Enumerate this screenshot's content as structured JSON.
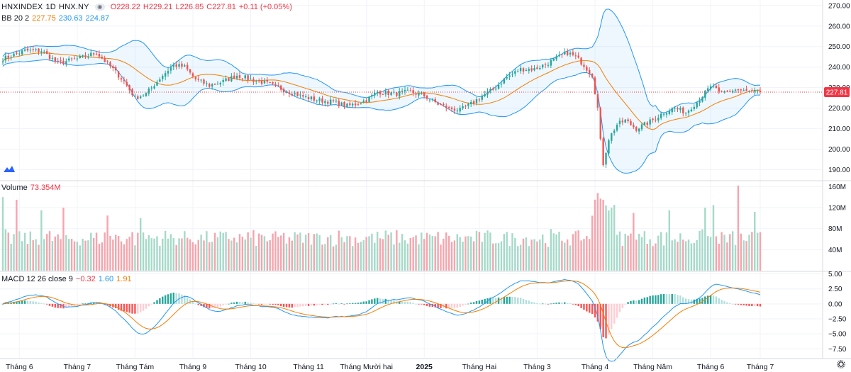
{
  "header": {
    "symbol": "HNXINDEX",
    "interval": "1D",
    "exchange": "HNX.NY",
    "open": "O228.22",
    "high": "H229.21",
    "low": "L226.85",
    "close": "C227.81",
    "change": "+0.11 (+0.05%)",
    "eye_glyph": "◉"
  },
  "bb_legend": {
    "name": "BB 20 2",
    "basis": "227.75",
    "upper": "230.63",
    "lower": "224.87"
  },
  "volume_legend": {
    "name": "Volume",
    "value": "73.354M"
  },
  "macd_legend": {
    "name": "MACD 12 26 close 9",
    "hist": "−0.32",
    "macd": "1.60",
    "signal": "1.91"
  },
  "price_tag": "227.81",
  "colors": {
    "up": "#26a69a",
    "down": "#ef5350",
    "vol_up": "#a6d9c9",
    "vol_down": "#f5a5ad",
    "bb": "#2196f3",
    "basis": "#f57c00",
    "macd": "#2196f3",
    "signal": "#f57c00"
  },
  "chart_data": [
    {
      "type": "candlestick",
      "title": "HNXINDEX 1D HNX.NY",
      "y_ticks": [
        "270.00",
        "260.00",
        "250.00",
        "240.00",
        "230.00",
        "220.00",
        "210.00",
        "200.00",
        "190.00"
      ],
      "ylim": [
        185,
        272
      ],
      "x_ticks": [
        "Tháng 6",
        "Tháng 7",
        "Tháng Tám",
        "Tháng 9",
        "Tháng 10",
        "Tháng 11",
        "Tháng Mười hai",
        "2025",
        "Tháng Hai",
        "Tháng 3",
        "Tháng 4",
        "Tháng Năm",
        "Tháng 6",
        "Tháng 7"
      ],
      "x_tick_index": [
        6,
        27,
        48,
        69,
        90,
        111,
        132,
        153,
        173,
        194,
        215,
        236,
        257,
        275
      ],
      "close_anchors": [
        [
          0,
          244
        ],
        [
          8,
          248
        ],
        [
          14,
          248
        ],
        [
          20,
          242
        ],
        [
          27,
          244
        ],
        [
          34,
          247
        ],
        [
          40,
          239
        ],
        [
          44,
          233
        ],
        [
          48,
          225
        ],
        [
          52,
          227
        ],
        [
          58,
          236
        ],
        [
          62,
          241
        ],
        [
          66,
          240
        ],
        [
          70,
          234
        ],
        [
          75,
          231
        ],
        [
          80,
          233
        ],
        [
          85,
          236
        ],
        [
          90,
          234
        ],
        [
          96,
          232
        ],
        [
          102,
          229
        ],
        [
          108,
          226
        ],
        [
          114,
          224
        ],
        [
          120,
          223
        ],
        [
          125,
          221
        ],
        [
          128,
          222
        ],
        [
          132,
          224
        ],
        [
          136,
          228
        ],
        [
          142,
          227
        ],
        [
          148,
          228
        ],
        [
          153,
          226
        ],
        [
          158,
          222
        ],
        [
          162,
          220
        ],
        [
          166,
          219
        ],
        [
          170,
          222
        ],
        [
          174,
          226
        ],
        [
          178,
          229
        ],
        [
          183,
          235
        ],
        [
          188,
          239
        ],
        [
          193,
          239
        ],
        [
          198,
          242
        ],
        [
          202,
          245
        ],
        [
          205,
          247
        ],
        [
          208,
          245
        ],
        [
          211,
          241
        ],
        [
          214,
          236
        ],
        [
          216,
          220
        ],
        [
          217,
          204
        ],
        [
          218,
          193
        ],
        [
          220,
          205
        ],
        [
          223,
          212
        ],
        [
          226,
          214
        ],
        [
          230,
          210
        ],
        [
          233,
          212
        ],
        [
          237,
          215
        ],
        [
          240,
          218
        ],
        [
          244,
          220
        ],
        [
          248,
          218
        ],
        [
          252,
          223
        ],
        [
          256,
          229
        ],
        [
          258,
          231
        ],
        [
          260,
          227
        ],
        [
          263,
          228
        ],
        [
          266,
          229
        ],
        [
          270,
          228
        ],
        [
          275,
          227.81
        ]
      ],
      "last_close": 227.81,
      "bollinger": {
        "period": 20,
        "mult": 2,
        "basis": 227.75,
        "upper": 230.63,
        "lower": 224.87
      }
    },
    {
      "type": "bar",
      "title": "Volume",
      "y_ticks": [
        "160M",
        "120M",
        "80M",
        "40M"
      ],
      "ylim": [
        0,
        170
      ],
      "units": "M",
      "last_value": 73.354,
      "spikes": [
        [
          0,
          140
        ],
        [
          5,
          135
        ],
        [
          14,
          115
        ],
        [
          22,
          120
        ],
        [
          38,
          105
        ],
        [
          50,
          100
        ],
        [
          216,
          148
        ],
        [
          218,
          135
        ],
        [
          221,
          120
        ],
        [
          229,
          110
        ],
        [
          242,
          115
        ],
        [
          255,
          120
        ],
        [
          258,
          125
        ],
        [
          267,
          162
        ],
        [
          273,
          112
        ]
      ]
    },
    {
      "type": "line",
      "title": "MACD 12 26 close 9",
      "y_ticks": [
        "5.00",
        "2.50",
        "0.00",
        "−2.50",
        "−5.00",
        "−7.50"
      ],
      "ylim": [
        -9,
        5.3
      ],
      "series": [
        {
          "name": "MACD",
          "last": 1.6
        },
        {
          "name": "Signal",
          "last": 1.91
        },
        {
          "name": "Histogram",
          "last": -0.32
        }
      ]
    }
  ]
}
